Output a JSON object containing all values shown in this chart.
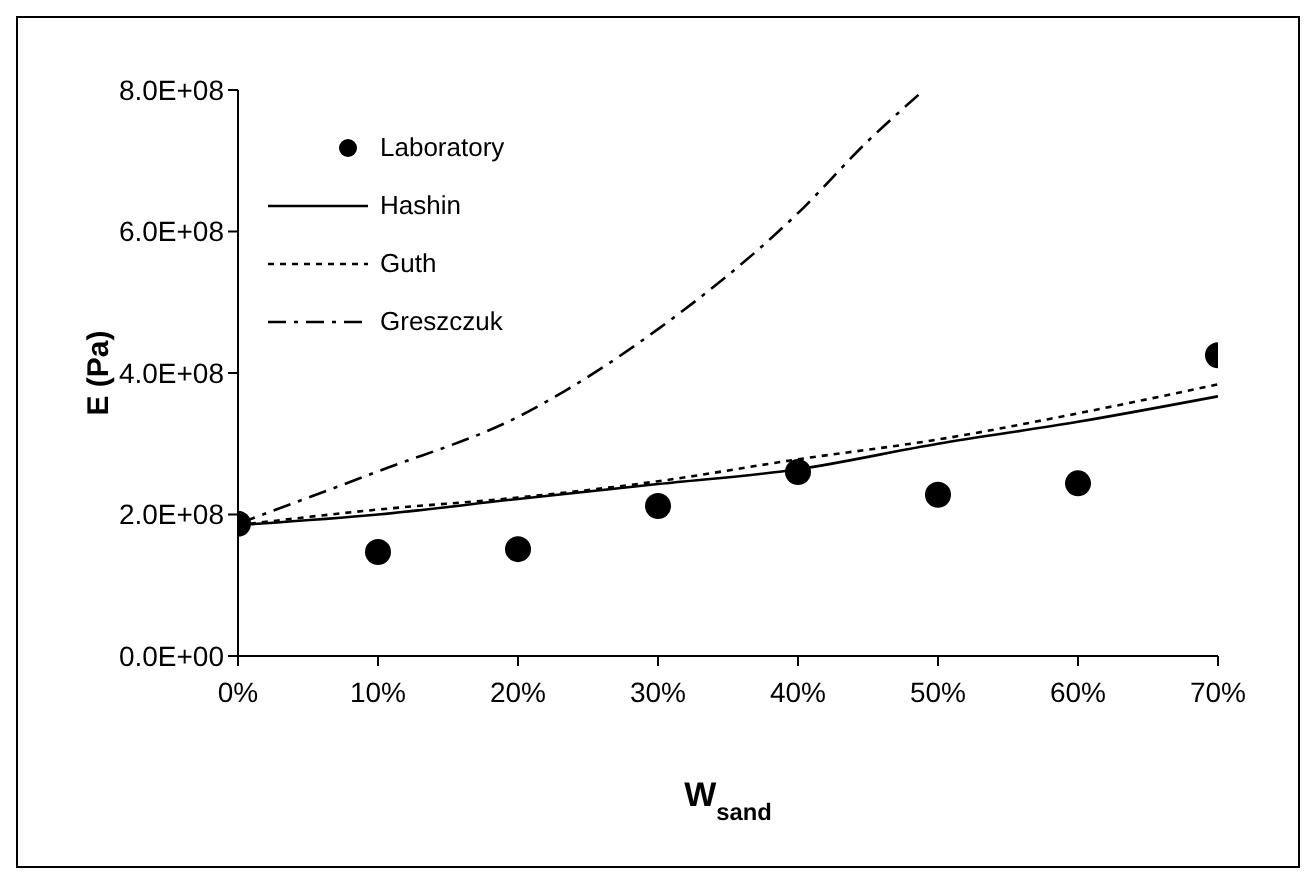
{
  "chart_data": {
    "type": "line",
    "xlabel": "W$_{sand}$",
    "ylabel": "E (Pa)",
    "xlim": [
      0,
      70
    ],
    "xticks": [
      {
        "value": 0,
        "label": "0%"
      },
      {
        "value": 10,
        "label": "10%"
      },
      {
        "value": 20,
        "label": "20%"
      },
      {
        "value": 30,
        "label": "30%"
      },
      {
        "value": 40,
        "label": "40%"
      },
      {
        "value": 50,
        "label": "50%"
      },
      {
        "value": 60,
        "label": "60%"
      },
      {
        "value": 70,
        "label": "70%"
      }
    ],
    "ylim": [
      0,
      800000000
    ],
    "yticks": [
      {
        "value": 0,
        "label": "0.0E+00"
      },
      {
        "value": 200000000,
        "label": "2.0E+08"
      },
      {
        "value": 400000000,
        "label": "4.0E+08"
      },
      {
        "value": 600000000,
        "label": "6.0E+08"
      },
      {
        "value": 800000000,
        "label": "8.0E+08"
      }
    ],
    "grid": false,
    "legend": "top left",
    "series": [
      {
        "name": "Laboratory",
        "type": "scatter",
        "marker": "circle",
        "color": "#000000",
        "x": [
          0,
          10,
          20,
          30,
          40,
          50,
          60,
          70
        ],
        "values": [
          187000000,
          147000000,
          151000000,
          212000000,
          260000000,
          228000000,
          244000000,
          425000000
        ]
      },
      {
        "name": "Hashin",
        "type": "line",
        "line_style": "solid",
        "marker": "none",
        "color": "#000000",
        "x": [
          0,
          10,
          20,
          30,
          40,
          50,
          60,
          70
        ],
        "values": [
          185000000,
          200000000,
          222000000,
          243000000,
          264000000,
          300000000,
          331000000,
          367000000
        ]
      },
      {
        "name": "Guth",
        "type": "line",
        "line_style": "dotted",
        "marker": "none",
        "color": "#000000",
        "x": [
          0,
          10,
          20,
          30,
          40,
          50,
          60,
          70
        ],
        "values": [
          185000000,
          207000000,
          224000000,
          247000000,
          278000000,
          306000000,
          343000000,
          384000000
        ]
      },
      {
        "name": "Greszczuk",
        "type": "line",
        "line_style": "dashed",
        "marker": "none",
        "color": "#000000",
        "x": [
          0,
          10,
          20,
          30,
          40,
          45,
          49
        ],
        "values": [
          187000000,
          261000000,
          338000000,
          462000000,
          626000000,
          728000000,
          800000000
        ]
      }
    ]
  }
}
